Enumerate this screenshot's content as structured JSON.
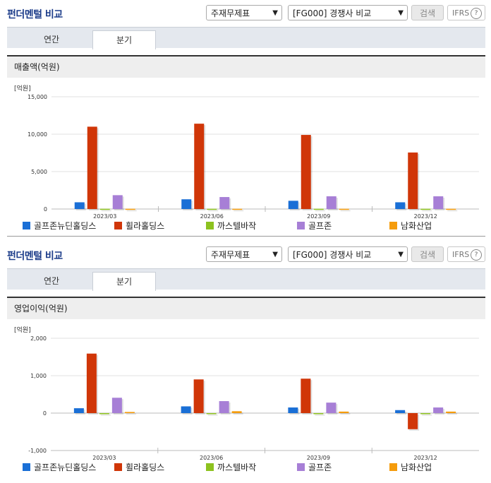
{
  "header": {
    "title": "펀더멘털 비교",
    "statement_select": "주재무제표",
    "compare_select": "[FG000] 경쟁사 비교",
    "search_button": "검색",
    "ifrs_button": "IFRS",
    "help_glyph": "?"
  },
  "tabs": [
    "연간",
    "분기"
  ],
  "active_tab": "분기",
  "series_colors": {
    "골프존뉴딘홀딩스": "#1a6fd6",
    "휠라홀딩스": "#d03608",
    "까스텔바작": "#8dc21f",
    "골프존": "#a77fd6",
    "남화산업": "#f59c0c"
  },
  "charts": [
    {
      "section_title": "매출액(억원)",
      "unit": "[억원]"
    },
    {
      "section_title": "영업이익(억원)",
      "unit": "[억원]"
    }
  ],
  "chart_data": [
    {
      "type": "bar",
      "title": "매출액(억원)",
      "categories": [
        "2023/03",
        "2023/06",
        "2023/09",
        "2023/12"
      ],
      "ylim": [
        0,
        15000
      ],
      "yticks": [
        0,
        5000,
        10000,
        15000
      ],
      "ytick_labels": [
        "0",
        "5,000",
        "10,000",
        "15,000"
      ],
      "grid": true,
      "legend": "bottom",
      "series": [
        {
          "name": "골프존뉴딘홀딩스",
          "values": [
            900,
            1300,
            1100,
            900
          ]
        },
        {
          "name": "휠라홀딩스",
          "values": [
            11000,
            11400,
            9900,
            7550
          ]
        },
        {
          "name": "까스텔바작",
          "values": [
            30,
            30,
            30,
            30
          ]
        },
        {
          "name": "골프존",
          "values": [
            1850,
            1600,
            1700,
            1700
          ]
        },
        {
          "name": "남화산업",
          "values": [
            30,
            30,
            30,
            30
          ]
        }
      ]
    },
    {
      "type": "bar",
      "title": "영업이익(억원)",
      "categories": [
        "2023/03",
        "2023/06",
        "2023/09",
        "2023/12"
      ],
      "ylim": [
        -1000,
        2000
      ],
      "yticks": [
        -1000,
        0,
        1000,
        2000
      ],
      "ytick_labels": [
        "-1,000",
        "0",
        "1,000",
        "2,000"
      ],
      "grid": true,
      "legend": "bottom",
      "series": [
        {
          "name": "골프존뉴딘홀딩스",
          "values": [
            130,
            180,
            150,
            80
          ]
        },
        {
          "name": "휠라홀딩스",
          "values": [
            1590,
            900,
            920,
            -430
          ]
        },
        {
          "name": "까스텔바작",
          "values": [
            -10,
            -10,
            -15,
            -15
          ]
        },
        {
          "name": "골프존",
          "values": [
            410,
            320,
            280,
            150
          ]
        },
        {
          "name": "남화산업",
          "values": [
            30,
            50,
            40,
            40
          ]
        }
      ]
    }
  ]
}
